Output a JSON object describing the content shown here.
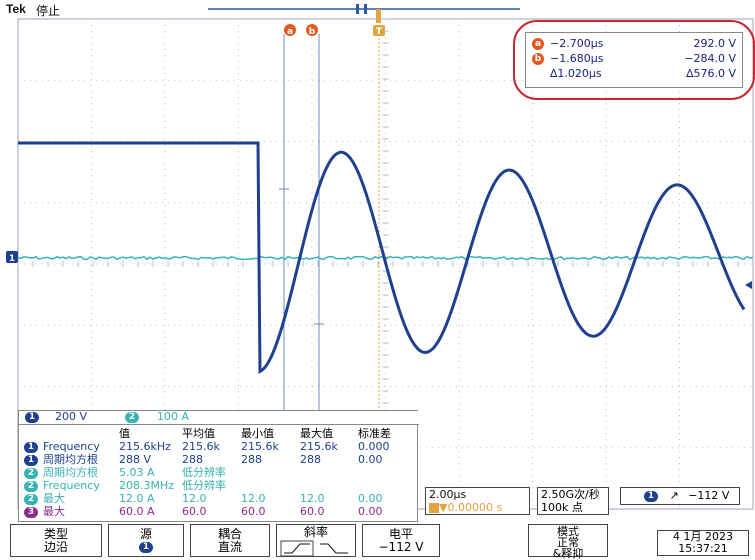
{
  "header": {
    "brand": "Tek",
    "acq_state": "停止"
  },
  "cursors": {
    "marker_a": "a",
    "marker_b": "b",
    "trigger_marker": "T",
    "a_time": "−2.700µs",
    "a_value": "292.0 V",
    "b_time": "−1.680µs",
    "b_value": "−284.0 V",
    "delta_time": "∆1.020µs",
    "delta_value": "∆576.0 V"
  },
  "channels": {
    "ch1_num": "1",
    "ch1_scale": "200 V",
    "ch2_num": "2",
    "ch2_scale": "100 A"
  },
  "measurements": {
    "headers": [
      "值",
      "平均值",
      "最小值",
      "最大值",
      "标准差"
    ],
    "rows": [
      {
        "ch": "1",
        "name": "Frequency",
        "value": "215.6kHz",
        "mean": "215.6k",
        "min": "215.6k",
        "max": "215.6k",
        "std": "0.000",
        "color": "#1f3f8f"
      },
      {
        "ch": "1",
        "name": "周期均方根",
        "value": "288 V",
        "mean": "288",
        "min": "288",
        "max": "288",
        "std": "0.00",
        "color": "#1f3f8f"
      },
      {
        "ch": "2",
        "name": "周期均方根",
        "value": "5.03 A",
        "mean": "低分辨率",
        "min": "",
        "max": "",
        "std": "",
        "color": "#37b3b3"
      },
      {
        "ch": "2",
        "name": "Frequency",
        "value": "208.3MHz",
        "mean": "低分辨率",
        "min": "",
        "max": "",
        "std": "",
        "color": "#37b3b3"
      },
      {
        "ch": "2",
        "name": "最大",
        "value": "12.0 A",
        "mean": "12.0",
        "min": "12.0",
        "max": "12.0",
        "std": "0.00",
        "color": "#37b3b3"
      },
      {
        "ch": "3",
        "name": "最大",
        "value": "60.0 A",
        "mean": "60.0",
        "min": "60.0",
        "max": "60.0",
        "std": "0.00",
        "color": "#8b2c8b"
      }
    ]
  },
  "timebase": {
    "scale": "2.00µs",
    "position": "▼0.00000 s"
  },
  "acquisition": {
    "rate": "2.50G次/秒",
    "points": "100k 点"
  },
  "trigger": {
    "ch": "1",
    "slope_glyph": "↗",
    "level": "−112 V"
  },
  "softkeys": {
    "type_label": "类型",
    "type_value": "边沿",
    "source_label": "源",
    "source_value": "1",
    "coupling_label": "耦合",
    "coupling_value": "直流",
    "slope_label": "斜率",
    "level_label": "电平",
    "level_value": "−112 V",
    "mode_label": "模式",
    "mode_value": "正常",
    "mode_value2": "&释抑"
  },
  "datetime": {
    "date": "4 1月 2023",
    "time": "15:37:21"
  },
  "colors": {
    "ch1": "#1f3f8f",
    "ch2": "#37b3b3",
    "ch3": "#8b2c8b",
    "cursor_marker": "#e2581f",
    "highlight": "#c62833",
    "grid": "#b9bfcf"
  }
}
